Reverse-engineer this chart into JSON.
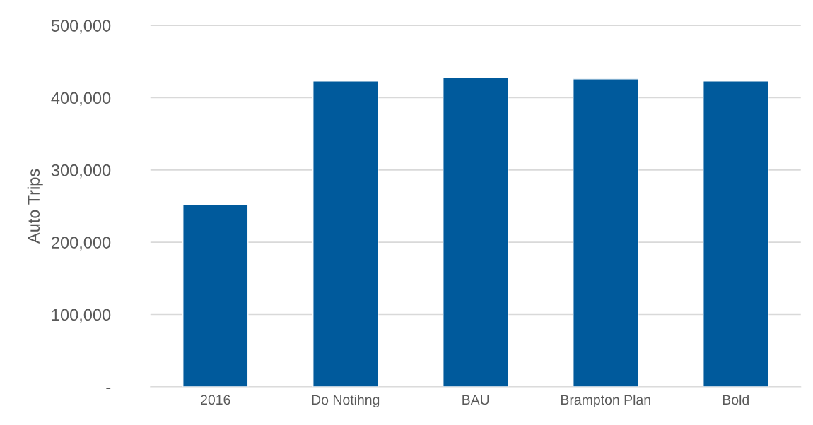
{
  "chart_data": {
    "type": "bar",
    "ylabel": "Auto Trips",
    "categories": [
      "2016",
      "Do Notihng",
      "BAU",
      "Brampton Plan",
      "Bold"
    ],
    "values": [
      252000,
      423000,
      428000,
      426000,
      423000
    ],
    "color": "#005a9c",
    "ylim": [
      0,
      500000
    ],
    "yticks": [
      {
        "value": 0,
        "label": "-"
      },
      {
        "value": 100000,
        "label": "100,000"
      },
      {
        "value": 200000,
        "label": "200,000"
      },
      {
        "value": 300000,
        "label": "300,000"
      },
      {
        "value": 400000,
        "label": "400,000"
      },
      {
        "value": 500000,
        "label": "500,000"
      }
    ],
    "grid": "y"
  }
}
